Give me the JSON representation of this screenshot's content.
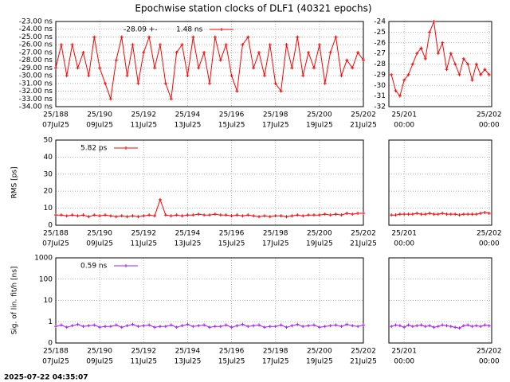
{
  "title": "Epochwise station clocks of DLF1 (40321 epochs)",
  "timestamp": "2025-07-22 04:35:07",
  "chart_data": [
    {
      "type": "line",
      "grid": true,
      "legend": "upper left",
      "annotations": [
        "-28.09 +-"
      ],
      "xlim": [
        188,
        202
      ],
      "ylim": [
        -34,
        -23
      ],
      "xticks": [
        {
          "value": 188,
          "label": "25/188"
        },
        {
          "value": 190,
          "label": "25/190"
        },
        {
          "value": 192,
          "label": "25/192"
        },
        {
          "value": 194,
          "label": "25/194"
        },
        {
          "value": 196,
          "label": "25/196"
        },
        {
          "value": 198,
          "label": "25/198"
        },
        {
          "value": 200,
          "label": "25/200"
        },
        {
          "value": 202,
          "label": "25/202"
        }
      ],
      "xtick_dates": [
        "07Jul25",
        "09Jul25",
        "11Jul25",
        "13Jul25",
        "15Jul25",
        "17Jul25",
        "19Jul25",
        "21Jul25"
      ],
      "yticks": [
        {
          "value": -23,
          "label": "-23.00 ns"
        },
        {
          "value": -24,
          "label": "-24.00 ns"
        },
        {
          "value": -25,
          "label": "-25.00 ns"
        },
        {
          "value": -26,
          "label": "-26.00 ns"
        },
        {
          "value": -27,
          "label": "-27.00 ns"
        },
        {
          "value": -28,
          "label": "-28.00 ns"
        },
        {
          "value": -29,
          "label": "-29.00 ns"
        },
        {
          "value": -30,
          "label": "-30.00 ns"
        },
        {
          "value": -31,
          "label": "-31.00 ns"
        },
        {
          "value": -32,
          "label": "-32.00 ns"
        },
        {
          "value": -33,
          "label": "-33.00 ns"
        },
        {
          "value": -34,
          "label": "-34.00 ns"
        }
      ],
      "x": [
        188,
        188.25,
        188.5,
        188.75,
        189,
        189.25,
        189.5,
        189.75,
        190,
        190.25,
        190.5,
        190.75,
        191,
        191.25,
        191.5,
        191.75,
        192,
        192.25,
        192.5,
        192.75,
        193,
        193.25,
        193.5,
        193.75,
        194,
        194.25,
        194.5,
        194.75,
        195,
        195.25,
        195.5,
        195.75,
        196,
        196.25,
        196.5,
        196.75,
        197,
        197.25,
        197.5,
        197.75,
        198,
        198.25,
        198.5,
        198.75,
        199,
        199.25,
        199.5,
        199.75,
        200,
        200.25,
        200.5,
        200.75,
        201,
        201.25,
        201.5,
        201.75,
        202
      ],
      "series": [
        {
          "name": "1.48 ns",
          "color": "#ff0000",
          "values": [
            -29,
            -26,
            -30,
            -26,
            -29,
            -27,
            -30,
            -25,
            -29,
            -31,
            -33,
            -28,
            -25,
            -30,
            -26,
            -31,
            -27,
            -25,
            -29,
            -26,
            -31,
            -33,
            -27,
            -26,
            -30,
            -25,
            -29,
            -27,
            -31,
            -25,
            -28,
            -26,
            -30,
            -32,
            -26,
            -25,
            -29,
            -27,
            -30,
            -26,
            -31,
            -32,
            -26,
            -29,
            -25,
            -30,
            -27,
            -29,
            -26,
            -31,
            -27,
            -25,
            -30,
            -28,
            -29,
            -27,
            -28
          ]
        }
      ]
    },
    {
      "type": "line",
      "grid": true,
      "xlim": [
        200.82,
        202.03
      ],
      "ylim": [
        -32,
        -24
      ],
      "xticks": [
        {
          "value": 201,
          "label": "25/201"
        },
        {
          "value": 202,
          "label": "25/202"
        }
      ],
      "xtick_dates": [
        "00:00",
        "00:00"
      ],
      "yticks": [
        -24,
        -25,
        -26,
        -27,
        -28,
        -29,
        -30,
        -31,
        -32
      ],
      "x": [
        200.85,
        200.9,
        200.95,
        201,
        201.05,
        201.1,
        201.15,
        201.2,
        201.25,
        201.3,
        201.35,
        201.4,
        201.45,
        201.5,
        201.55,
        201.6,
        201.65,
        201.7,
        201.75,
        201.8,
        201.85,
        201.9,
        201.95,
        202
      ],
      "series": [
        {
          "color": "#ff0000",
          "values": [
            -29,
            -30.5,
            -31,
            -29.5,
            -29,
            -28,
            -27,
            -26.5,
            -27.5,
            -25,
            -24,
            -27,
            -26,
            -28.5,
            -27,
            -28,
            -29,
            -27.5,
            -28,
            -29.5,
            -28,
            -29,
            -28.5,
            -29
          ]
        }
      ]
    },
    {
      "type": "line",
      "grid": true,
      "legend": "upper left",
      "ylabel": "RMS [ps]",
      "xlim": [
        188,
        202
      ],
      "ylim": [
        0,
        50
      ],
      "xticks": [
        {
          "value": 188,
          "label": "25/188"
        },
        {
          "value": 190,
          "label": "25/190"
        },
        {
          "value": 192,
          "label": "25/192"
        },
        {
          "value": 194,
          "label": "25/194"
        },
        {
          "value": 196,
          "label": "25/196"
        },
        {
          "value": 198,
          "label": "25/198"
        },
        {
          "value": 200,
          "label": "25/200"
        },
        {
          "value": 202,
          "label": "25/202"
        }
      ],
      "xtick_dates": [
        "07Jul25",
        "09Jul25",
        "11Jul25",
        "13Jul25",
        "15Jul25",
        "17Jul25",
        "19Jul25",
        "21Jul25"
      ],
      "yticks": [
        0,
        10,
        20,
        30,
        40,
        50
      ],
      "x": [
        188,
        188.25,
        188.5,
        188.75,
        189,
        189.25,
        189.5,
        189.75,
        190,
        190.25,
        190.5,
        190.75,
        191,
        191.25,
        191.5,
        191.75,
        192,
        192.25,
        192.5,
        192.75,
        193,
        193.25,
        193.5,
        193.75,
        194,
        194.25,
        194.5,
        194.75,
        195,
        195.25,
        195.5,
        195.75,
        196,
        196.25,
        196.5,
        196.75,
        197,
        197.25,
        197.5,
        197.75,
        198,
        198.25,
        198.5,
        198.75,
        199,
        199.25,
        199.5,
        199.75,
        200,
        200.25,
        200.5,
        200.75,
        201,
        201.25,
        201.5,
        201.75,
        202
      ],
      "series": [
        {
          "name": "5.82 ps",
          "color": "#ff0000",
          "values": [
            6,
            6,
            5.5,
            6,
            5.5,
            6,
            5,
            6,
            5.5,
            6,
            5.5,
            5,
            5.5,
            5,
            5.5,
            5,
            5.5,
            6,
            5.5,
            15,
            6,
            5.5,
            6,
            5.5,
            6,
            6,
            6.5,
            6,
            6,
            6.5,
            6,
            6,
            5.5,
            6,
            5.5,
            6,
            5.5,
            5,
            5.5,
            5,
            5.5,
            5.5,
            5,
            5.5,
            6,
            5.5,
            6,
            6,
            6,
            6.5,
            6,
            6.5,
            6,
            7,
            6.5,
            7,
            7
          ]
        }
      ]
    },
    {
      "type": "line",
      "grid": true,
      "show_ytick_labels": false,
      "xlim": [
        200.82,
        202.03
      ],
      "ylim": [
        0,
        50
      ],
      "xticks": [
        {
          "value": 201,
          "label": "25/201"
        },
        {
          "value": 202,
          "label": "25/202"
        }
      ],
      "xtick_dates": [
        "00:00",
        "00:00"
      ],
      "yticks": [
        0,
        10,
        20,
        30,
        40,
        50
      ],
      "x": [
        200.85,
        200.9,
        200.95,
        201,
        201.05,
        201.1,
        201.15,
        201.2,
        201.25,
        201.3,
        201.35,
        201.4,
        201.45,
        201.5,
        201.55,
        201.6,
        201.65,
        201.7,
        201.75,
        201.8,
        201.85,
        201.9,
        201.95,
        202
      ],
      "series": [
        {
          "color": "#ff0000",
          "values": [
            6,
            6,
            6.5,
            6.5,
            6.5,
            6.5,
            7,
            6.5,
            6.5,
            7,
            6.5,
            6.5,
            7,
            6.5,
            6.5,
            6.5,
            6,
            6.5,
            6.5,
            6.5,
            6.5,
            7,
            7.5,
            7
          ]
        }
      ]
    },
    {
      "type": "line",
      "grid": true,
      "log_y": true,
      "legend": "upper left",
      "ylabel": "Sig. of lin. fit/h [ns]",
      "xlim": [
        188,
        202
      ],
      "ylim": [
        0.1,
        1000
      ],
      "xticks": [
        {
          "value": 188,
          "label": "25/188"
        },
        {
          "value": 190,
          "label": "25/190"
        },
        {
          "value": 192,
          "label": "25/192"
        },
        {
          "value": 194,
          "label": "25/194"
        },
        {
          "value": 196,
          "label": "25/196"
        },
        {
          "value": 198,
          "label": "25/198"
        },
        {
          "value": 200,
          "label": "25/200"
        },
        {
          "value": 202,
          "label": "25/202"
        }
      ],
      "xtick_dates": [
        "07Jul25",
        "09Jul25",
        "11Jul25",
        "13Jul25",
        "15Jul25",
        "17Jul25",
        "19Jul25",
        "21Jul25"
      ],
      "yticks": [
        {
          "value": 0.1,
          "label": "0"
        },
        1,
        10,
        100,
        1000
      ],
      "x": [
        188,
        188.25,
        188.5,
        188.75,
        189,
        189.25,
        189.5,
        189.75,
        190,
        190.25,
        190.5,
        190.75,
        191,
        191.25,
        191.5,
        191.75,
        192,
        192.25,
        192.5,
        192.75,
        193,
        193.25,
        193.5,
        193.75,
        194,
        194.25,
        194.5,
        194.75,
        195,
        195.25,
        195.5,
        195.75,
        196,
        196.25,
        196.5,
        196.75,
        197,
        197.25,
        197.5,
        197.75,
        198,
        198.25,
        198.5,
        198.75,
        199,
        199.25,
        199.5,
        199.75,
        200,
        200.25,
        200.5,
        200.75,
        201,
        201.25,
        201.5,
        201.75,
        202
      ],
      "series": [
        {
          "name": "0.59 ns",
          "color": "#a020f0",
          "values": [
            0.6,
            0.7,
            0.55,
            0.65,
            0.75,
            0.6,
            0.65,
            0.7,
            0.55,
            0.6,
            0.6,
            0.7,
            0.55,
            0.65,
            0.75,
            0.6,
            0.65,
            0.7,
            0.55,
            0.6,
            0.6,
            0.7,
            0.55,
            0.65,
            0.75,
            0.6,
            0.65,
            0.7,
            0.55,
            0.6,
            0.6,
            0.7,
            0.55,
            0.65,
            0.75,
            0.6,
            0.65,
            0.7,
            0.55,
            0.6,
            0.6,
            0.7,
            0.55,
            0.65,
            0.75,
            0.6,
            0.65,
            0.7,
            0.55,
            0.6,
            0.65,
            0.7,
            0.6,
            0.75,
            0.65,
            0.6,
            0.7
          ]
        }
      ]
    },
    {
      "type": "line",
      "grid": true,
      "log_y": true,
      "show_ytick_labels": false,
      "xlim": [
        200.82,
        202.03
      ],
      "ylim": [
        0.1,
        1000
      ],
      "xticks": [
        {
          "value": 201,
          "label": "25/201"
        },
        {
          "value": 202,
          "label": "25/202"
        }
      ],
      "xtick_dates": [
        "00:00",
        "00:00"
      ],
      "yticks": [
        0.1,
        1,
        10,
        100,
        1000
      ],
      "x": [
        200.85,
        200.9,
        200.95,
        201,
        201.05,
        201.1,
        201.15,
        201.2,
        201.25,
        201.3,
        201.35,
        201.4,
        201.45,
        201.5,
        201.55,
        201.6,
        201.65,
        201.7,
        201.75,
        201.8,
        201.85,
        201.9,
        201.95,
        202
      ],
      "series": [
        {
          "color": "#a020f0",
          "values": [
            0.6,
            0.7,
            0.65,
            0.55,
            0.7,
            0.6,
            0.65,
            0.7,
            0.6,
            0.65,
            0.55,
            0.6,
            0.7,
            0.65,
            0.6,
            0.55,
            0.5,
            0.65,
            0.7,
            0.6,
            0.65,
            0.6,
            0.7,
            0.65
          ]
        }
      ]
    }
  ]
}
